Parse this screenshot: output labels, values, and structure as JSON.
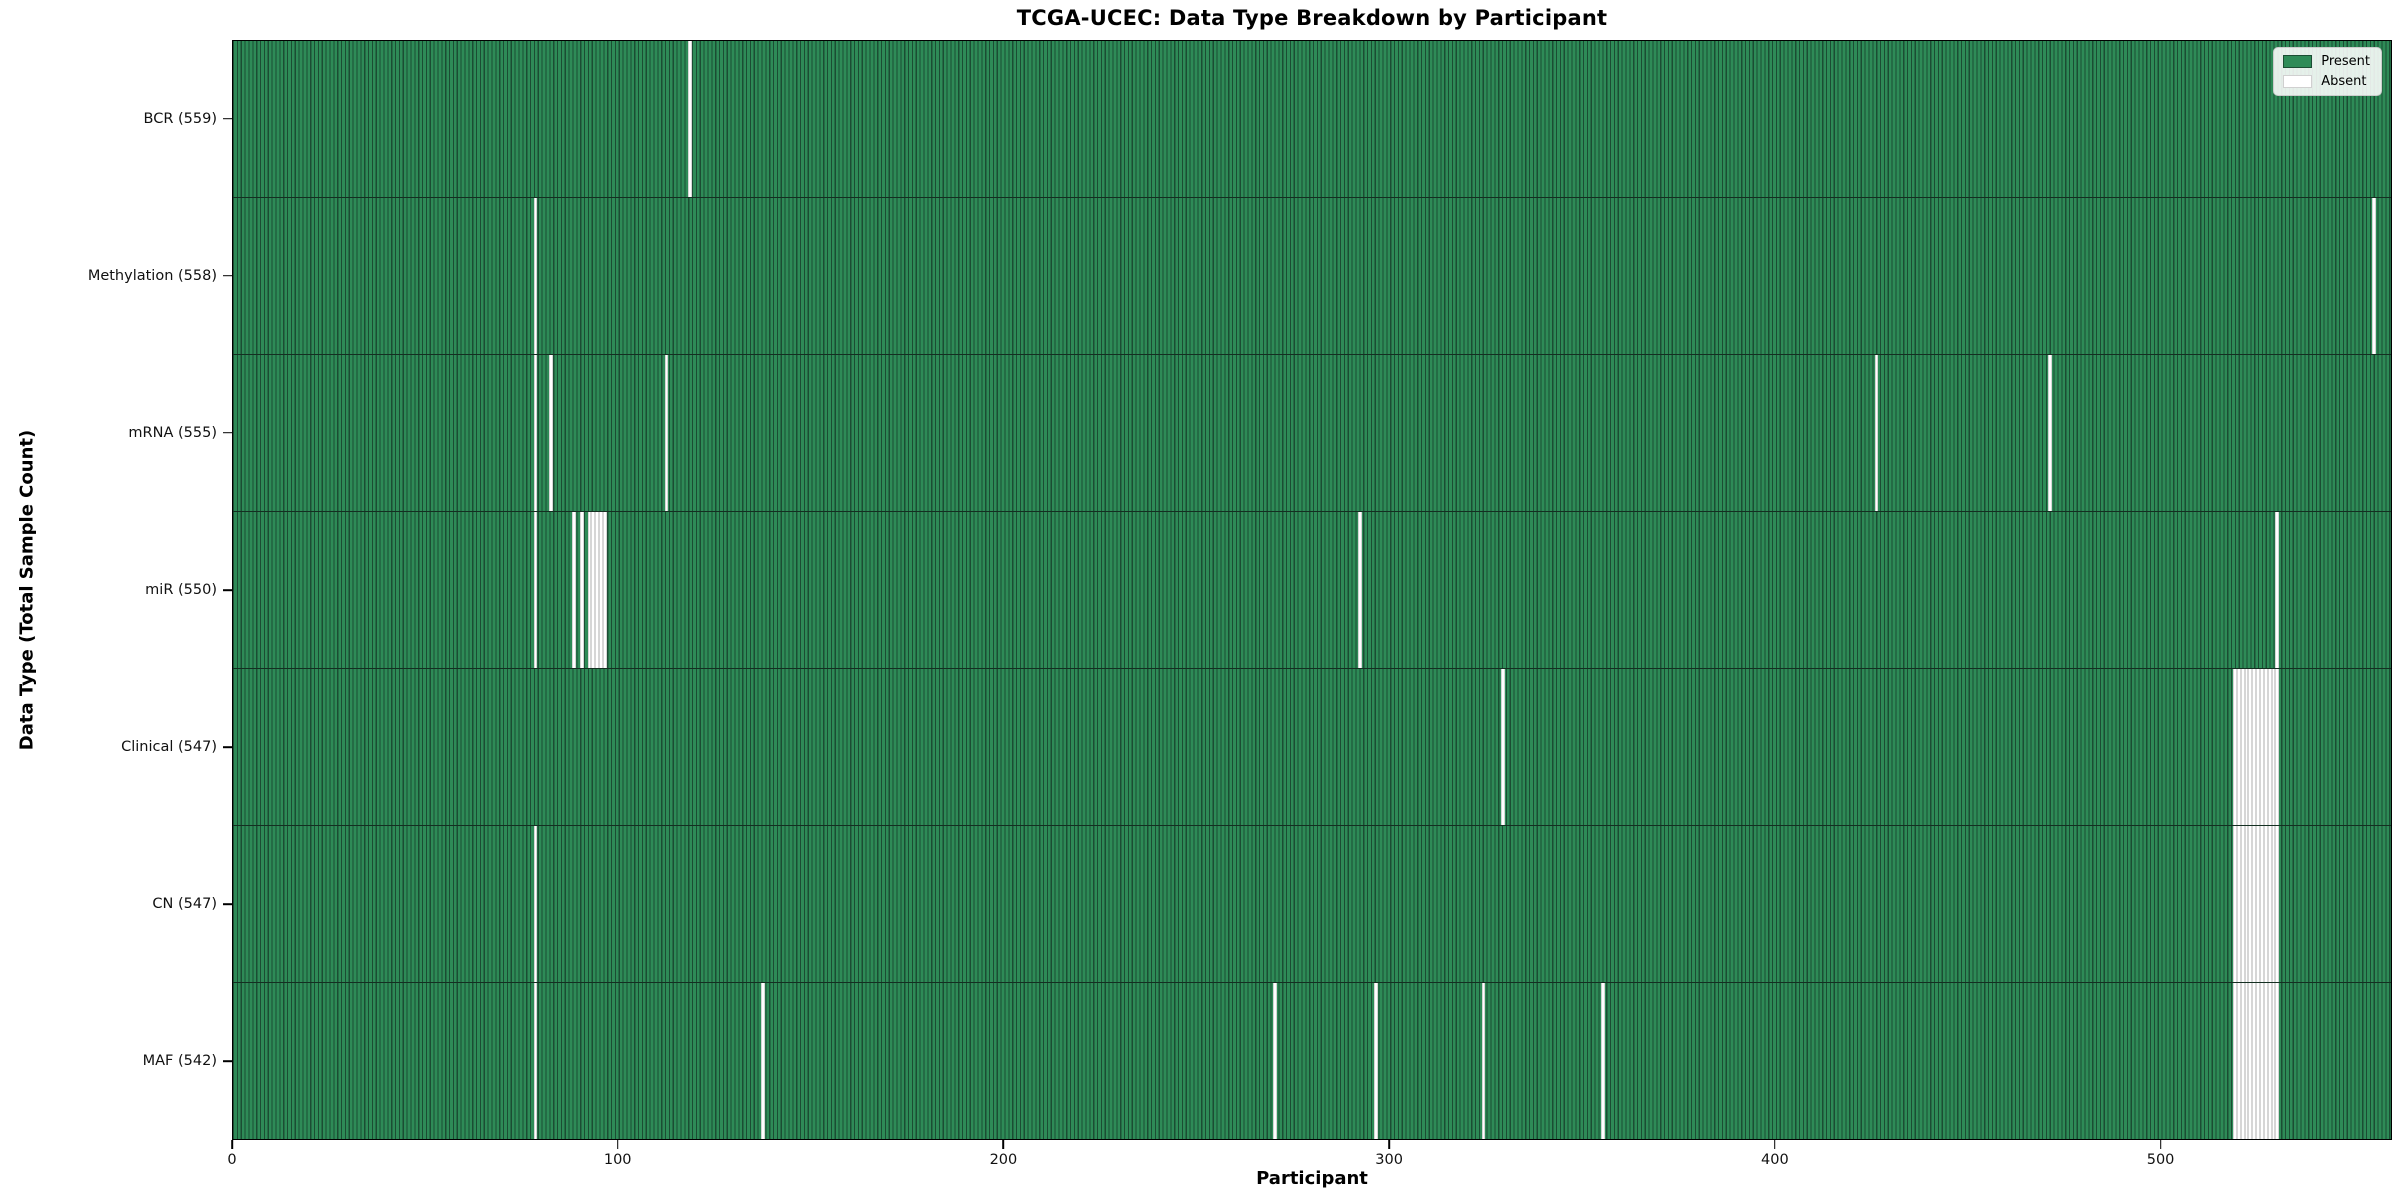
{
  "chart_data": {
    "type": "heatmap",
    "title": "TCGA-UCEC: Data Type Breakdown by Participant",
    "xlabel": "Participant",
    "ylabel": "Data Type (Total Sample Count)",
    "n_participants": 560,
    "x_ticks": [
      0,
      100,
      200,
      300,
      400,
      500
    ],
    "xlim": [
      0,
      560
    ],
    "grid": false,
    "legend_position": "upper right",
    "present_color": "#2e8b57",
    "absent_color": "#ffffff",
    "bar_edge_color": "#1b4d33",
    "legend": [
      {
        "label": "Present",
        "color": "#2e8b57"
      },
      {
        "label": "Absent",
        "color": "#ffffff"
      }
    ],
    "rows": [
      {
        "key": "bcr",
        "label": "BCR (559)",
        "present_count": 559,
        "absent_indices": [
          118
        ]
      },
      {
        "key": "methylation",
        "label": "Methylation (558)",
        "present_count": 558,
        "absent_indices": [
          78,
          555
        ]
      },
      {
        "key": "mrna",
        "label": "mRNA (555)",
        "present_count": 555,
        "absent_indices": [
          78,
          82,
          112,
          426,
          471
        ]
      },
      {
        "key": "mir",
        "label": "miR (550)",
        "present_count": 550,
        "absent_indices": [
          78,
          88,
          90,
          92,
          93,
          94,
          95,
          96,
          292,
          530
        ]
      },
      {
        "key": "clinical",
        "label": "Clinical (547)",
        "present_count": 547,
        "absent_indices": [
          329,
          519,
          520,
          521,
          522,
          523,
          524,
          525,
          526,
          527,
          528,
          529,
          530
        ]
      },
      {
        "key": "cn",
        "label": "CN (547)",
        "present_count": 547,
        "absent_indices": [
          78,
          519,
          520,
          521,
          522,
          523,
          524,
          525,
          526,
          527,
          528,
          529,
          530
        ]
      },
      {
        "key": "maf",
        "label": "MAF (542)",
        "present_count": 542,
        "absent_indices": [
          78,
          137,
          270,
          296,
          324,
          355,
          519,
          520,
          521,
          522,
          523,
          524,
          525,
          526,
          527,
          528,
          529,
          530
        ]
      }
    ]
  }
}
